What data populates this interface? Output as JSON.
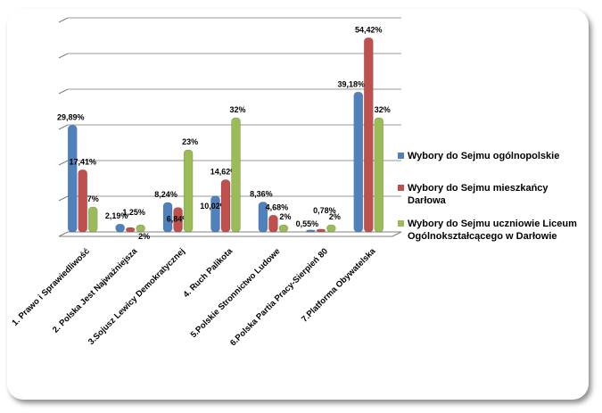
{
  "chart_data": {
    "type": "bar",
    "categories": [
      "1. Prawo i Sprawiedliwość",
      "2. Polska Jest Najważniejsza",
      "3.Sojusz Lewicy Demokratycznej",
      "4. Ruch Palikota",
      "5.Polskie Stronnictwo Ludowe",
      "6.Polska Partia Pracy-Sierpień 80",
      "7.Platforma Obywatelska"
    ],
    "series": [
      {
        "name": "Wybory do Sejmu ogólnopolskie",
        "color": "#4F81BD",
        "values": [
          29.89,
          2.19,
          8.24,
          10.02,
          8.36,
          0.55,
          39.18
        ],
        "labels": [
          "29,89%",
          "2,19%",
          "8,24%",
          "10,02%",
          "8,36%",
          "0,55%",
          "39,18%"
        ]
      },
      {
        "name": "Wybory do Sejmu mieszkańcy Darłowa",
        "color": "#C0504D",
        "values": [
          17.41,
          1.25,
          6.84,
          14.62,
          4.68,
          0.78,
          54.42
        ],
        "labels": [
          "17,41%",
          "1,25%",
          "6,84%",
          "14,62%",
          "4,68%",
          "0,78%",
          "54,42%"
        ]
      },
      {
        "name": "Wybory do Sejmu uczniowie Liceum Ogólnokształcącego w Darłowie",
        "color": "#9BBB59",
        "values": [
          7,
          2,
          23,
          32,
          2,
          2,
          32
        ],
        "labels": [
          "7%",
          "2%",
          "23%",
          "32%",
          "2%",
          "2%",
          "32%"
        ]
      }
    ],
    "legend_lines": [
      [
        "Wybory do Sejmu ogólnopolskie"
      ],
      [
        "Wybory do Sejmu mieszkańcy",
        "Darłowa"
      ],
      [
        "Wybory do Sejmu uczniowie Liceum",
        "Ogólnokształcącego w Darłowie"
      ]
    ],
    "ylim": [
      0,
      60
    ],
    "grid": true,
    "legend": "right",
    "title": "",
    "xlabel": "",
    "ylabel": ""
  }
}
